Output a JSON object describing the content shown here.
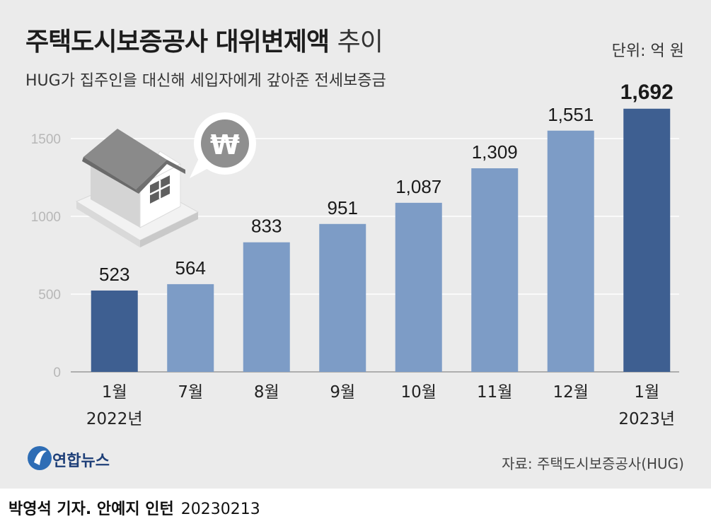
{
  "header": {
    "title": "주택도시보증공사 대위변제액",
    "title_suffix": "추이",
    "subtitle": "HUG가 집주인을 대신해 세입자에게 갚아준 전세보증금",
    "unit": "단위: 억 원"
  },
  "footer": {
    "logo_text": "연합뉴스",
    "source": "자료: 주택도시보증공사(HUG)",
    "credit": "박영석 기자. 안예지 인턴",
    "date": "20230213"
  },
  "colors": {
    "bar_dark": "#3e5f91",
    "bar_light": "#7d9cc6",
    "grid": "#ffffff",
    "panel": "#ebebeb"
  },
  "chart_data": {
    "type": "bar",
    "categories": [
      "1월\n2022년",
      "7월",
      "8월",
      "9월",
      "10월",
      "11월",
      "12월",
      "1월\n2023년"
    ],
    "values": [
      523,
      564,
      833,
      951,
      1087,
      1309,
      1551,
      1692
    ],
    "value_labels": [
      "523",
      "564",
      "833",
      "951",
      "1,087",
      "1,309",
      "1,551",
      "1,692"
    ],
    "highlight": [
      true,
      false,
      false,
      false,
      false,
      false,
      false,
      true
    ],
    "bold_label": [
      false,
      false,
      false,
      false,
      false,
      false,
      false,
      true
    ],
    "yticks": [
      0,
      500,
      1000,
      1500
    ],
    "ylim": [
      0,
      1900
    ],
    "grid": true
  }
}
